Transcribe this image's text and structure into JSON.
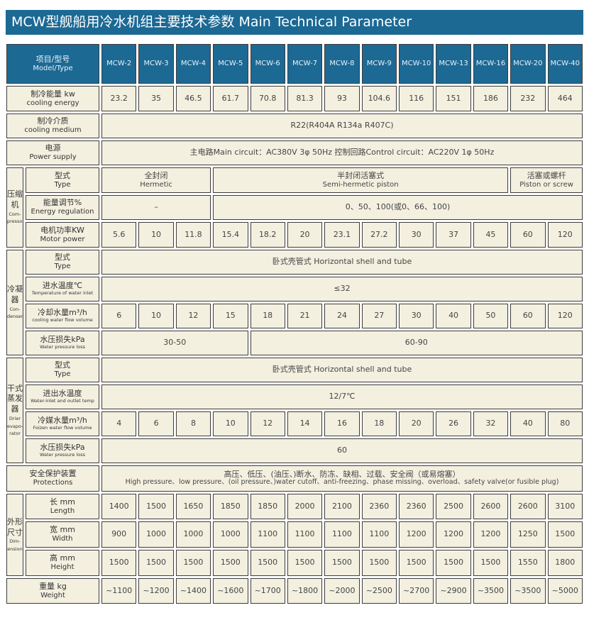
{
  "title": "MCW型舰船用冷水机组主要技术参数 Main Technical Parameter",
  "header": {
    "label_cn": "项目/型号",
    "label_en": "Model/Type",
    "models": [
      "MCW-2",
      "MCW-3",
      "MCW-4",
      "MCW-5",
      "MCW-6",
      "MCW-7",
      "MCW-8",
      "MCW-9",
      "MCW-10",
      "MCW-13",
      "MCW-16",
      "MCW-20",
      "MCW-40"
    ]
  },
  "colors": {
    "header_bg": "#1c6994",
    "cell_bg": "#f4f0e0",
    "border": "#3c3c3c"
  },
  "groups": [
    {
      "cn": "压缩机",
      "en": "Com-pressor"
    },
    {
      "cn": "冷凝器",
      "en": "Con-denser"
    },
    {
      "cn": "干式蒸发器",
      "en": "Drier evapo-rator"
    },
    {
      "cn": "外形尺寸",
      "en": "Dim-ension"
    }
  ],
  "rows": [
    {
      "cn": "制冷能量 kw",
      "en": "cooling energy",
      "h": 36,
      "cells": [
        {
          "t": "23.2"
        },
        {
          "t": "35"
        },
        {
          "t": "46.5"
        },
        {
          "t": "61.7"
        },
        {
          "t": "70.8"
        },
        {
          "t": "81.3"
        },
        {
          "t": "93"
        },
        {
          "t": "104.6"
        },
        {
          "t": "116"
        },
        {
          "t": "151"
        },
        {
          "t": "186"
        },
        {
          "t": "232"
        },
        {
          "t": "464"
        }
      ]
    },
    {
      "cn": "制冷介质",
      "en": "cooling medium",
      "h": 35,
      "cells": [
        {
          "t": "R22(R404A  R134a  R407C)",
          "s": 13
        }
      ]
    },
    {
      "cn": "电源",
      "en": "Power supply",
      "h": 35,
      "cells": [
        {
          "t": "主电路Main circuit：AC380V 3φ  50Hz      控制回路Control circuit：AC220V 1φ  50Hz",
          "s": 13
        }
      ]
    },
    {
      "g": 0,
      "cn": "型式",
      "en": "Type",
      "h": 36,
      "cells": [
        {
          "t": "全封闭",
          "t2": "Hermetic",
          "s": 3
        },
        {
          "t": "半封闭活塞式",
          "t2": "Semi-hermetic piston",
          "s": 8
        },
        {
          "t": "活塞或螺杆",
          "t2": "Piston or screw",
          "s": 2
        }
      ]
    },
    {
      "cn": "能量调节%",
      "en": "Energy regulation",
      "h": 35,
      "cells": [
        {
          "t": "–",
          "s": 3
        },
        {
          "t": "0、50、100(或0、66、100)",
          "s": 10
        }
      ]
    },
    {
      "cn": "电机功率KW",
      "en": "Motor power",
      "h": 36,
      "cells": [
        {
          "t": "5.6"
        },
        {
          "t": "10"
        },
        {
          "t": "11.8"
        },
        {
          "t": "15.4"
        },
        {
          "t": "18.2"
        },
        {
          "t": "20"
        },
        {
          "t": "23.1"
        },
        {
          "t": "27.2"
        },
        {
          "t": "30"
        },
        {
          "t": "37"
        },
        {
          "t": "45"
        },
        {
          "t": "60"
        },
        {
          "t": "120"
        }
      ]
    },
    {
      "g": 1,
      "cn": "型式",
      "en": "Type",
      "h": 35,
      "cells": [
        {
          "t": "卧式壳管式  Horizontal shell and tube",
          "s": 13
        }
      ]
    },
    {
      "cn": "进水温度℃",
      "en": "Temperature of water inlet",
      "small": true,
      "h": 35,
      "cells": [
        {
          "t": "≤32",
          "s": 13
        }
      ]
    },
    {
      "cn": "冷却水量m³/h",
      "en": "cooling water flow volume",
      "small": true,
      "h": 35,
      "cells": [
        {
          "t": "6"
        },
        {
          "t": "10"
        },
        {
          "t": "12"
        },
        {
          "t": "15"
        },
        {
          "t": "18"
        },
        {
          "t": "21"
        },
        {
          "t": "24"
        },
        {
          "t": "27"
        },
        {
          "t": "30"
        },
        {
          "t": "40"
        },
        {
          "t": "50"
        },
        {
          "t": "60"
        },
        {
          "t": "120"
        }
      ]
    },
    {
      "cn": "水压损失kPa",
      "en": "Water pressure loss",
      "small": true,
      "h": 35,
      "cells": [
        {
          "t": "30-50",
          "s": 4
        },
        {
          "t": "60-90",
          "s": 9
        }
      ]
    },
    {
      "g": 2,
      "cn": "型式",
      "en": "Type",
      "h": 35,
      "cells": [
        {
          "t": "卧式壳管式  Horizontal shell and tube",
          "s": 13
        }
      ]
    },
    {
      "cn": "进出水温度",
      "en": "Water-inlet and outlet temp",
      "small": true,
      "h": 35,
      "cells": [
        {
          "t": "12/7℃",
          "s": 13
        }
      ]
    },
    {
      "cn": "冷媒水量m³/h",
      "en": "Foizen water flow volume",
      "small": true,
      "h": 35,
      "cells": [
        {
          "t": "4"
        },
        {
          "t": "6"
        },
        {
          "t": "8"
        },
        {
          "t": "10"
        },
        {
          "t": "12"
        },
        {
          "t": "14"
        },
        {
          "t": "16"
        },
        {
          "t": "18"
        },
        {
          "t": "20"
        },
        {
          "t": "26"
        },
        {
          "t": "32"
        },
        {
          "t": "40"
        },
        {
          "t": "80"
        }
      ]
    },
    {
      "cn": "水压损失kPa",
      "en": "Water pressure loss",
      "small": true,
      "h": 35,
      "cells": [
        {
          "t": "60",
          "s": 13
        }
      ]
    },
    {
      "full": true,
      "cn": "安全保护装置",
      "en": "Protections",
      "h": 37,
      "cells": [
        {
          "t": "高压、低压、(油压、)断水、防冻、缺相、过载、安全阀（或易熔塞）",
          "t2": "High pressure、low pressure、(oil pressure、)water cutoff、anti-freezing、phase missing、overload、safety valve(or fusible plug)",
          "s": 13
        }
      ]
    },
    {
      "g": 3,
      "cn": "长 mm",
      "en": "Length",
      "h": 36,
      "cells": [
        {
          "t": "1400"
        },
        {
          "t": "1500"
        },
        {
          "t": "1650"
        },
        {
          "t": "1850"
        },
        {
          "t": "1850"
        },
        {
          "t": "2000"
        },
        {
          "t": "2100"
        },
        {
          "t": "2360"
        },
        {
          "t": "2360"
        },
        {
          "t": "2500"
        },
        {
          "t": "2600"
        },
        {
          "t": "2600"
        },
        {
          "t": "3100"
        }
      ]
    },
    {
      "cn": "宽 mm",
      "en": "Width",
      "h": 37,
      "cells": [
        {
          "t": "900"
        },
        {
          "t": "1000"
        },
        {
          "t": "1000"
        },
        {
          "t": "1000"
        },
        {
          "t": "1100"
        },
        {
          "t": "1100"
        },
        {
          "t": "1100"
        },
        {
          "t": "1100"
        },
        {
          "t": "1200"
        },
        {
          "t": "1200"
        },
        {
          "t": "1200"
        },
        {
          "t": "1250"
        },
        {
          "t": "1500"
        }
      ]
    },
    {
      "cn": "高 mm",
      "en": "Height",
      "h": 37,
      "cells": [
        {
          "t": "1500"
        },
        {
          "t": "1500"
        },
        {
          "t": "1500"
        },
        {
          "t": "1500"
        },
        {
          "t": "1500"
        },
        {
          "t": "1500"
        },
        {
          "t": "1500"
        },
        {
          "t": "1500"
        },
        {
          "t": "1500"
        },
        {
          "t": "1500"
        },
        {
          "t": "1500"
        },
        {
          "t": "1550"
        },
        {
          "t": "1800"
        }
      ]
    },
    {
      "full": true,
      "cn": "重量 kg",
      "en": "Weight",
      "h": 36,
      "cells": [
        {
          "t": "~1100"
        },
        {
          "t": "~1200"
        },
        {
          "t": "~1400"
        },
        {
          "t": "~1600"
        },
        {
          "t": "~1700"
        },
        {
          "t": "~1800"
        },
        {
          "t": "~2000"
        },
        {
          "t": "~2500"
        },
        {
          "t": "~2700"
        },
        {
          "t": "~2900"
        },
        {
          "t": "~3500"
        },
        {
          "t": "~3500"
        },
        {
          "t": "~5000"
        }
      ]
    }
  ]
}
